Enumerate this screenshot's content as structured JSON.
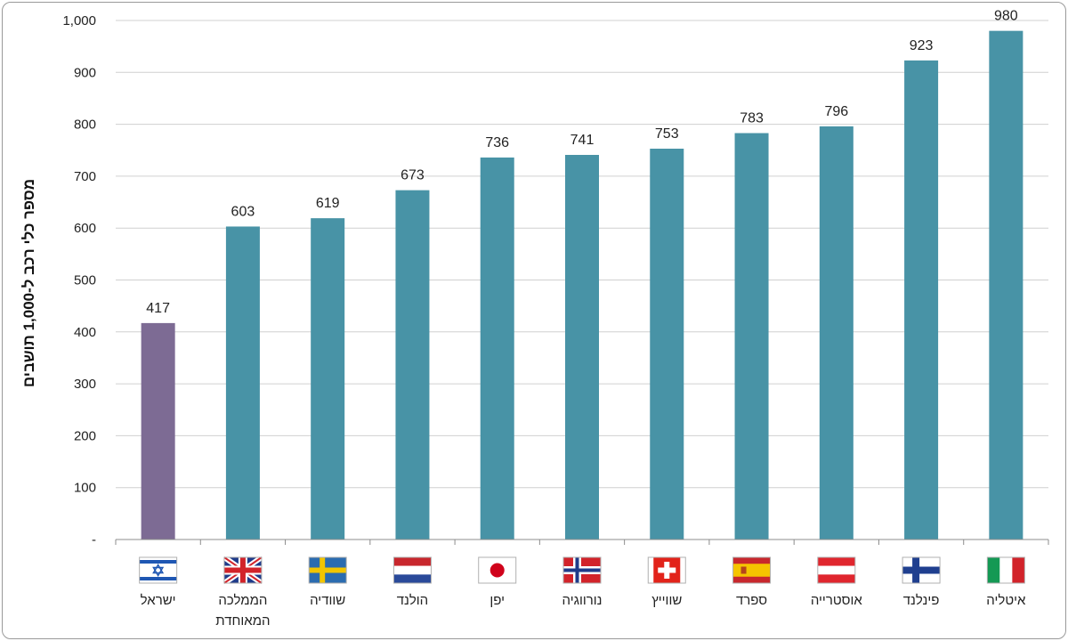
{
  "chart_data": {
    "type": "bar",
    "ylabel": "מספר כלי רכב ל-1,000 תושבים",
    "ylim": [
      0,
      1000
    ],
    "yticks": [
      {
        "value": 0,
        "label": "-"
      },
      {
        "value": 100,
        "label": "100"
      },
      {
        "value": 200,
        "label": "200"
      },
      {
        "value": 300,
        "label": "300"
      },
      {
        "value": 400,
        "label": "400"
      },
      {
        "value": 500,
        "label": "500"
      },
      {
        "value": 600,
        "label": "600"
      },
      {
        "value": 700,
        "label": "700"
      },
      {
        "value": 800,
        "label": "800"
      },
      {
        "value": 900,
        "label": "900"
      },
      {
        "value": 1000,
        "label": "1,000"
      }
    ],
    "grid": true,
    "categories": [
      {
        "lines": [
          "ישראל"
        ],
        "flag": "israel-flag"
      },
      {
        "lines": [
          "הממלכה",
          "המאוחדת"
        ],
        "flag": "uk-flag"
      },
      {
        "lines": [
          "שוודיה"
        ],
        "flag": "sweden-flag"
      },
      {
        "lines": [
          "הולנד"
        ],
        "flag": "netherlands-flag"
      },
      {
        "lines": [
          "יפן"
        ],
        "flag": "japan-flag"
      },
      {
        "lines": [
          "נורווגיה"
        ],
        "flag": "norway-flag"
      },
      {
        "lines": [
          "שווייץ"
        ],
        "flag": "switzerland-flag"
      },
      {
        "lines": [
          "ספרד"
        ],
        "flag": "spain-flag"
      },
      {
        "lines": [
          "אוסטרייה"
        ],
        "flag": "austria-flag"
      },
      {
        "lines": [
          "פינלנד"
        ],
        "flag": "finland-flag"
      },
      {
        "lines": [
          "איטליה"
        ],
        "flag": "italy-flag"
      }
    ],
    "values": [
      417,
      603,
      619,
      673,
      736,
      741,
      753,
      783,
      796,
      923,
      980
    ],
    "data_labels": [
      "417",
      "603",
      "619",
      "673",
      "736",
      "741",
      "753",
      "783",
      "796",
      "923",
      "980"
    ],
    "colors": {
      "highlight": "#7d6b94",
      "default": "#4893a6",
      "grid": "#d0d0d0",
      "axis": "#8c8c8c"
    },
    "highlight_index": 0
  }
}
